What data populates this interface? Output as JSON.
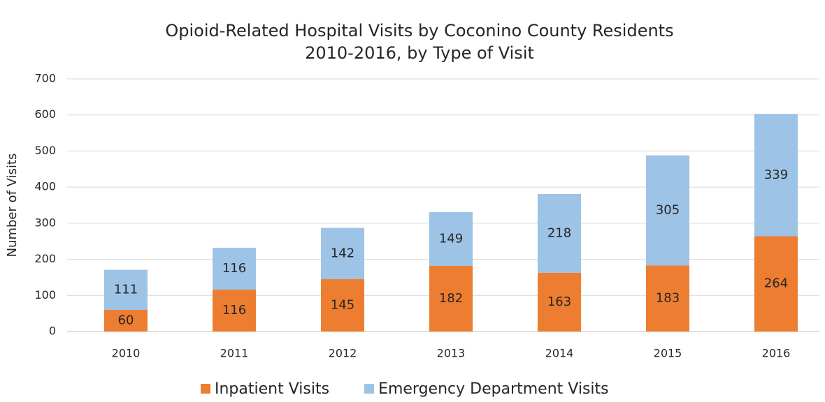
{
  "chart_data": {
    "type": "stacked_bar",
    "title": "Opioid-Related Hospital Visits by Coconino County Residents",
    "subtitle": "2010-2016, by Type of Visit",
    "y_label": "Number of Visits",
    "categories": [
      "2010",
      "2011",
      "2012",
      "2013",
      "2014",
      "2015",
      "2016"
    ],
    "series": [
      {
        "name": "Inpatient Visits",
        "color": "#ed7d31",
        "values": [
          60,
          116,
          145,
          182,
          163,
          183,
          264
        ]
      },
      {
        "name": "Emergency Department Visits",
        "color": "#9dc3e6",
        "values": [
          111,
          116,
          142,
          149,
          218,
          305,
          339
        ]
      }
    ],
    "ylim": [
      0,
      700
    ],
    "yticks": [
      0,
      100,
      200,
      300,
      400,
      500,
      600,
      700
    ],
    "grid": true,
    "legend": "bottom"
  }
}
